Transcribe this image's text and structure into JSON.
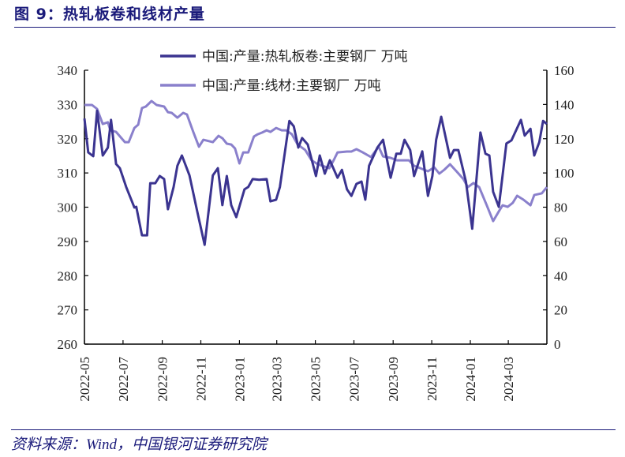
{
  "title": "图 9：热轧板卷和线材产量",
  "source": "资料来源：Wind，中国银河证券研究院",
  "chart_data": {
    "type": "line",
    "title": "",
    "xlabel": "",
    "ylabel_left": "",
    "ylabel_right": "",
    "legend_position": "top-center",
    "grid": false,
    "x_ticks": [
      "2022-05",
      "2022-07",
      "2022-09",
      "2022-11",
      "2023-01",
      "2023-03",
      "2023-05",
      "2023-07",
      "2023-09",
      "2023-11",
      "2024-01",
      "2024-03"
    ],
    "xlim": [
      "2022-05-01",
      "2024-05-01"
    ],
    "y_left": {
      "lim": [
        260,
        340
      ],
      "ticks": [
        260,
        270,
        280,
        290,
        300,
        310,
        320,
        330,
        340
      ]
    },
    "y_right": {
      "lim": [
        0,
        160
      ],
      "ticks": [
        0,
        20,
        40,
        60,
        80,
        100,
        120,
        140,
        160
      ]
    },
    "series": [
      {
        "name": "中国:产量:热轧板卷:主要钢厂 万吨",
        "axis": "left",
        "color": "#3b3490",
        "points": [
          [
            "2022-05-01",
            325.9
          ],
          [
            "2022-05-07",
            316.0
          ],
          [
            "2022-05-15",
            314.9
          ],
          [
            "2022-05-21",
            328.2
          ],
          [
            "2022-05-30",
            315.1
          ],
          [
            "2022-06-07",
            317.4
          ],
          [
            "2022-06-12",
            325.5
          ],
          [
            "2022-06-20",
            312.6
          ],
          [
            "2022-06-26",
            311.4
          ],
          [
            "2022-07-06",
            305.9
          ],
          [
            "2022-07-19",
            299.9
          ],
          [
            "2022-07-22",
            300.1
          ],
          [
            "2022-07-31",
            291.8
          ],
          [
            "2022-08-08",
            291.8
          ],
          [
            "2022-08-13",
            307.0
          ],
          [
            "2022-08-21",
            307.0
          ],
          [
            "2022-08-28",
            309.1
          ],
          [
            "2022-09-04",
            308.2
          ],
          [
            "2022-09-10",
            299.4
          ],
          [
            "2022-09-19",
            305.9
          ],
          [
            "2022-09-25",
            312.1
          ],
          [
            "2022-10-02",
            315.1
          ],
          [
            "2022-10-14",
            309.3
          ],
          [
            "2022-10-26",
            299.0
          ],
          [
            "2022-11-07",
            289.0
          ],
          [
            "2022-11-20",
            309.3
          ],
          [
            "2022-11-28",
            311.4
          ],
          [
            "2022-12-05",
            300.6
          ],
          [
            "2022-12-12",
            309.1
          ],
          [
            "2022-12-19",
            300.6
          ],
          [
            "2022-12-27",
            297.1
          ],
          [
            "2023-01-09",
            305.2
          ],
          [
            "2023-01-15",
            305.9
          ],
          [
            "2023-01-22",
            308.2
          ],
          [
            "2023-02-01",
            308.0
          ],
          [
            "2023-02-13",
            308.2
          ],
          [
            "2023-02-19",
            301.7
          ],
          [
            "2023-02-28",
            302.2
          ],
          [
            "2023-03-06",
            305.9
          ],
          [
            "2023-03-21",
            325.2
          ],
          [
            "2023-03-28",
            323.6
          ],
          [
            "2023-04-04",
            317.4
          ],
          [
            "2023-04-10",
            320.2
          ],
          [
            "2023-04-19",
            318.3
          ],
          [
            "2023-05-02",
            309.1
          ],
          [
            "2023-05-08",
            315.1
          ],
          [
            "2023-05-16",
            309.8
          ],
          [
            "2023-05-24",
            313.7
          ],
          [
            "2023-06-05",
            308.6
          ],
          [
            "2023-06-12",
            310.9
          ],
          [
            "2023-06-20",
            305.2
          ],
          [
            "2023-06-27",
            303.3
          ],
          [
            "2023-07-05",
            306.8
          ],
          [
            "2023-07-13",
            307.5
          ],
          [
            "2023-07-19",
            302.2
          ],
          [
            "2023-07-25",
            312.1
          ],
          [
            "2023-08-07",
            317.4
          ],
          [
            "2023-08-16",
            319.7
          ],
          [
            "2023-08-28",
            308.6
          ],
          [
            "2023-09-06",
            315.6
          ],
          [
            "2023-09-13",
            315.6
          ],
          [
            "2023-09-19",
            319.7
          ],
          [
            "2023-09-28",
            316.7
          ],
          [
            "2023-10-04",
            309.1
          ],
          [
            "2023-10-17",
            316.3
          ],
          [
            "2023-10-26",
            303.3
          ],
          [
            "2023-11-02",
            309.1
          ],
          [
            "2023-11-08",
            319.7
          ],
          [
            "2023-11-16",
            326.4
          ],
          [
            "2023-11-30",
            314.4
          ],
          [
            "2023-12-06",
            316.7
          ],
          [
            "2023-12-13",
            316.7
          ],
          [
            "2023-12-25",
            307.5
          ],
          [
            "2024-01-04",
            293.7
          ],
          [
            "2024-01-17",
            321.8
          ],
          [
            "2024-01-25",
            315.6
          ],
          [
            "2024-01-31",
            315.1
          ],
          [
            "2024-02-06",
            304.5
          ],
          [
            "2024-02-15",
            300.1
          ],
          [
            "2024-02-27",
            318.6
          ],
          [
            "2024-03-06",
            319.5
          ],
          [
            "2024-03-21",
            325.5
          ],
          [
            "2024-03-27",
            320.9
          ],
          [
            "2024-04-05",
            322.9
          ],
          [
            "2024-04-11",
            315.1
          ],
          [
            "2024-04-19",
            319.0
          ],
          [
            "2024-04-25",
            325.2
          ],
          [
            "2024-05-01",
            324.3
          ]
        ]
      },
      {
        "name": "中国:产量:线材:主要钢厂 万吨",
        "axis": "right",
        "color": "#8a80cc",
        "points": [
          [
            "2022-05-01",
            139.7
          ],
          [
            "2022-05-13",
            139.7
          ],
          [
            "2022-05-21",
            137.4
          ],
          [
            "2022-05-30",
            128.6
          ],
          [
            "2022-06-07",
            129.6
          ],
          [
            "2022-06-11",
            124.9
          ],
          [
            "2022-06-20",
            124.0
          ],
          [
            "2022-07-04",
            118.0
          ],
          [
            "2022-07-10",
            118.0
          ],
          [
            "2022-07-19",
            126.3
          ],
          [
            "2022-07-25",
            128.2
          ],
          [
            "2022-07-31",
            137.9
          ],
          [
            "2022-08-06",
            138.8
          ],
          [
            "2022-08-15",
            142.0
          ],
          [
            "2022-08-23",
            139.7
          ],
          [
            "2022-09-04",
            138.8
          ],
          [
            "2022-09-10",
            135.5
          ],
          [
            "2022-09-16",
            135.1
          ],
          [
            "2022-09-25",
            132.3
          ],
          [
            "2022-10-04",
            135.1
          ],
          [
            "2022-10-10",
            134.2
          ],
          [
            "2022-10-20",
            124.0
          ],
          [
            "2022-10-29",
            115.3
          ],
          [
            "2022-11-05",
            119.4
          ],
          [
            "2022-11-20",
            118.0
          ],
          [
            "2022-11-29",
            121.7
          ],
          [
            "2022-12-05",
            120.3
          ],
          [
            "2022-12-12",
            117.1
          ],
          [
            "2022-12-19",
            116.6
          ],
          [
            "2022-12-25",
            114.3
          ],
          [
            "2023-01-01",
            105.6
          ],
          [
            "2023-01-07",
            112.0
          ],
          [
            "2023-01-15",
            112.0
          ],
          [
            "2023-01-24",
            121.3
          ],
          [
            "2023-01-30",
            122.6
          ],
          [
            "2023-02-06",
            123.6
          ],
          [
            "2023-02-13",
            124.9
          ],
          [
            "2023-02-19",
            124.0
          ],
          [
            "2023-02-28",
            126.3
          ],
          [
            "2023-03-09",
            124.9
          ],
          [
            "2023-03-16",
            124.9
          ],
          [
            "2023-03-25",
            122.6
          ],
          [
            "2023-04-03",
            116.6
          ],
          [
            "2023-04-15",
            113.4
          ],
          [
            "2023-04-25",
            107.4
          ],
          [
            "2023-05-05",
            105.1
          ],
          [
            "2023-05-23",
            102.8
          ],
          [
            "2023-05-30",
            107.4
          ],
          [
            "2023-06-05",
            112.0
          ],
          [
            "2023-06-20",
            112.5
          ],
          [
            "2023-06-27",
            112.5
          ],
          [
            "2023-07-05",
            113.9
          ],
          [
            "2023-07-15",
            112.0
          ],
          [
            "2023-07-28",
            109.3
          ],
          [
            "2023-08-09",
            115.3
          ],
          [
            "2023-08-16",
            109.7
          ],
          [
            "2023-08-28",
            108.8
          ],
          [
            "2023-09-07",
            107.4
          ],
          [
            "2023-09-26",
            107.4
          ],
          [
            "2023-10-04",
            104.2
          ],
          [
            "2023-10-14",
            102.8
          ],
          [
            "2023-10-26",
            101.0
          ],
          [
            "2023-11-05",
            103.3
          ],
          [
            "2023-11-13",
            99.6
          ],
          [
            "2023-11-21",
            101.9
          ],
          [
            "2023-11-30",
            105.1
          ],
          [
            "2023-12-10",
            101.0
          ],
          [
            "2023-12-21",
            96.4
          ],
          [
            "2023-12-28",
            91.7
          ],
          [
            "2024-01-06",
            94.1
          ],
          [
            "2024-01-15",
            91.7
          ],
          [
            "2024-01-27",
            81.1
          ],
          [
            "2024-02-06",
            71.9
          ],
          [
            "2024-02-15",
            77.5
          ],
          [
            "2024-02-21",
            81.1
          ],
          [
            "2024-02-29",
            80.2
          ],
          [
            "2024-03-08",
            82.5
          ],
          [
            "2024-03-15",
            86.7
          ],
          [
            "2024-03-25",
            84.4
          ],
          [
            "2024-04-05",
            81.1
          ],
          [
            "2024-04-11",
            87.1
          ],
          [
            "2024-04-23",
            88.1
          ],
          [
            "2024-05-01",
            91.7
          ]
        ]
      }
    ]
  }
}
